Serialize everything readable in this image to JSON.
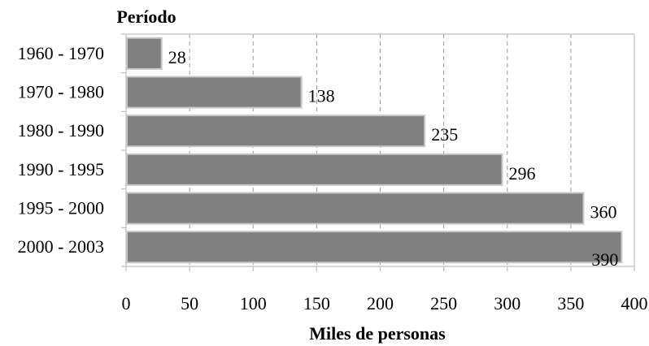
{
  "chart_data": {
    "type": "bar",
    "orientation": "horizontal",
    "title": "",
    "ylabel": "Período",
    "xlabel": "Miles de personas",
    "categories": [
      "1960 - 1970",
      "1970 - 1980",
      "1980 - 1990",
      "1990 - 1995",
      "1995 - 2000",
      "2000 - 2003"
    ],
    "values": [
      28,
      138,
      235,
      296,
      360,
      390
    ],
    "data_labels": [
      "28",
      "138",
      "235",
      "296",
      "360",
      "390"
    ],
    "xlim": [
      0,
      400
    ],
    "xticks": [
      0,
      50,
      100,
      150,
      200,
      250,
      300,
      350,
      400
    ],
    "grid": "vertical dashed",
    "legend": "none",
    "colors": {
      "bar_fill": "#808080",
      "bar_stroke": "#c8c8c8",
      "grid": "#9a9a9a",
      "axis": "#bfbfbf"
    }
  }
}
